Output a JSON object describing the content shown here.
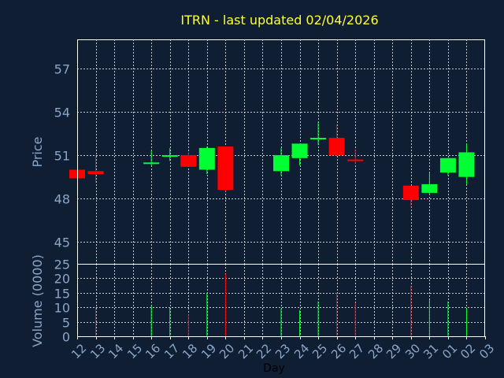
{
  "chart_data": [
    {
      "type": "candlestick",
      "title": "ITRN - last updated 02/04/2026",
      "ylabel": "Price",
      "ylim": [
        43.5,
        59
      ],
      "yticks": [
        45,
        48,
        51,
        54,
        57
      ],
      "grid": true,
      "colors": {
        "up": "#00ff33",
        "down": "#ff0000",
        "title": "#ffff33",
        "label": "#8aa6c8",
        "axis": "#ffffff",
        "background": "#0f1e32"
      },
      "x": [
        "12",
        "13",
        "14",
        "15",
        "16",
        "17",
        "18",
        "19",
        "20",
        "21",
        "22",
        "23",
        "24",
        "25",
        "26",
        "27",
        "28",
        "29",
        "30",
        "31",
        "01",
        "02",
        "03"
      ],
      "candles": [
        {
          "x": "12",
          "open": 50.0,
          "high": 50.0,
          "low": 49.4,
          "close": 49.4
        },
        {
          "x": "13",
          "open": 49.9,
          "high": 51.0,
          "low": 49.1,
          "close": 49.7
        },
        {
          "x": "16",
          "open": 50.4,
          "high": 51.3,
          "low": 50.3,
          "close": 50.5
        },
        {
          "x": "17",
          "open": 50.9,
          "high": 51.5,
          "low": 50.6,
          "close": 51.0
        },
        {
          "x": "18",
          "open": 51.0,
          "high": 51.2,
          "low": 50.2,
          "close": 50.2
        },
        {
          "x": "19",
          "open": 50.0,
          "high": 51.6,
          "low": 49.7,
          "close": 51.5
        },
        {
          "x": "20",
          "open": 51.6,
          "high": 51.6,
          "low": 48.5,
          "close": 48.6
        },
        {
          "x": "23",
          "open": 49.9,
          "high": 51.5,
          "low": 49.6,
          "close": 51.0
        },
        {
          "x": "24",
          "open": 50.8,
          "high": 51.8,
          "low": 50.3,
          "close": 51.8
        },
        {
          "x": "25",
          "open": 52.1,
          "high": 53.3,
          "low": 51.7,
          "close": 52.2
        },
        {
          "x": "26",
          "open": 52.2,
          "high": 53.1,
          "low": 50.9,
          "close": 51.0
        },
        {
          "x": "27",
          "open": 50.7,
          "high": 51.4,
          "low": 50.4,
          "close": 50.6
        },
        {
          "x": "30",
          "open": 48.9,
          "high": 48.9,
          "low": 47.4,
          "close": 47.9
        },
        {
          "x": "31",
          "open": 48.4,
          "high": 49.8,
          "low": 48.3,
          "close": 49.0
        },
        {
          "x": "01",
          "open": 49.8,
          "high": 50.8,
          "low": 49.6,
          "close": 50.8
        },
        {
          "x": "02",
          "open": 49.5,
          "high": 51.8,
          "low": 49.0,
          "close": 51.2
        }
      ]
    },
    {
      "type": "bar",
      "ylabel": "Volume (0000)",
      "xlabel": "Day",
      "ylim": [
        0,
        25
      ],
      "yticks": [
        0,
        5,
        10,
        15,
        20,
        25
      ],
      "grid": true,
      "values": [
        {
          "x": "13",
          "volume": 10,
          "dir": "down"
        },
        {
          "x": "16",
          "volume": 10.5,
          "dir": "up"
        },
        {
          "x": "17",
          "volume": 10,
          "dir": "up"
        },
        {
          "x": "18",
          "volume": 7.5,
          "dir": "down"
        },
        {
          "x": "19",
          "volume": 15,
          "dir": "up"
        },
        {
          "x": "20",
          "volume": 21.5,
          "dir": "down"
        },
        {
          "x": "23",
          "volume": 9.5,
          "dir": "up"
        },
        {
          "x": "24",
          "volume": 9,
          "dir": "up"
        },
        {
          "x": "25",
          "volume": 12,
          "dir": "up"
        },
        {
          "x": "26",
          "volume": 15,
          "dir": "down"
        },
        {
          "x": "27",
          "volume": 11.5,
          "dir": "down"
        },
        {
          "x": "30",
          "volume": 17.5,
          "dir": "down"
        },
        {
          "x": "31",
          "volume": 12.5,
          "dir": "up"
        },
        {
          "x": "01",
          "volume": 12,
          "dir": "up"
        },
        {
          "x": "02",
          "volume": 9.5,
          "dir": "up"
        }
      ]
    }
  ]
}
